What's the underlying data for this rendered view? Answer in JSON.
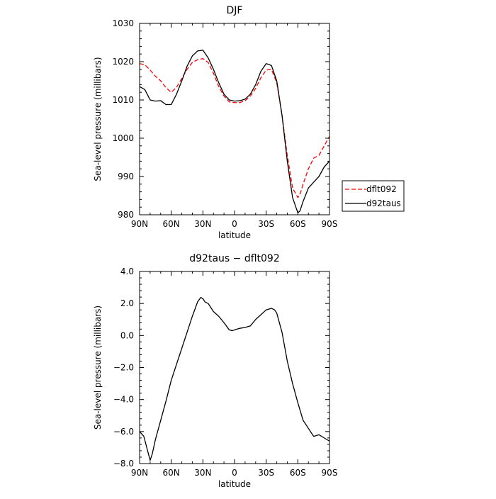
{
  "chart_data": [
    {
      "type": "line",
      "title": "DJF",
      "xlabel": "latitude",
      "ylabel": "Sea-level pressure (millibars)",
      "xlim": [
        -90,
        90
      ],
      "ylim": [
        980,
        1030
      ],
      "x_ticks": [
        {
          "value": -90,
          "label": "90N"
        },
        {
          "value": -60,
          "label": "60N"
        },
        {
          "value": -30,
          "label": "30N"
        },
        {
          "value": 0,
          "label": "0"
        },
        {
          "value": 30,
          "label": "30S"
        },
        {
          "value": 60,
          "label": "60S"
        },
        {
          "value": 90,
          "label": "90S"
        }
      ],
      "y_ticks": [
        {
          "value": 980,
          "label": "980"
        },
        {
          "value": 990,
          "label": "990"
        },
        {
          "value": 1000,
          "label": "1000"
        },
        {
          "value": 1010,
          "label": "1010"
        },
        {
          "value": 1020,
          "label": "1020"
        },
        {
          "value": 1030,
          "label": "1030"
        }
      ],
      "legend": {
        "placement": "right"
      },
      "series": [
        {
          "name": "dflt092",
          "color": "#ff0000",
          "dash": "dashed",
          "x": [
            -90,
            -85,
            -80,
            -75,
            -70,
            -65,
            -60,
            -55,
            -50,
            -45,
            -40,
            -35,
            -30,
            -25,
            -20,
            -15,
            -10,
            -5,
            0,
            5,
            10,
            15,
            20,
            25,
            30,
            35,
            40,
            45,
            50,
            55,
            60,
            62,
            65,
            70,
            75,
            80,
            85,
            90
          ],
          "values": [
            1019.5,
            1019.2,
            1017.8,
            1016.2,
            1015.0,
            1013.2,
            1012.0,
            1013.3,
            1015.6,
            1018.0,
            1019.8,
            1020.5,
            1020.8,
            1019.8,
            1017.0,
            1013.5,
            1011.0,
            1009.5,
            1009.3,
            1009.3,
            1009.8,
            1011.0,
            1013.0,
            1015.8,
            1017.8,
            1018.0,
            1014.5,
            1006.0,
            995.5,
            987.0,
            984.5,
            985.3,
            988.0,
            992.0,
            994.8,
            995.5,
            998.0,
            1000.5
          ]
        },
        {
          "name": "d92taus",
          "color": "#000000",
          "dash": "solid",
          "x": [
            -90,
            -85,
            -80,
            -75,
            -70,
            -65,
            -60,
            -55,
            -50,
            -45,
            -40,
            -35,
            -30,
            -25,
            -20,
            -15,
            -10,
            -5,
            0,
            5,
            10,
            15,
            20,
            25,
            30,
            35,
            40,
            45,
            50,
            55,
            60,
            62,
            65,
            70,
            75,
            80,
            85,
            90
          ],
          "values": [
            1013.5,
            1012.7,
            1010.0,
            1009.7,
            1009.8,
            1008.8,
            1008.8,
            1011.5,
            1015.0,
            1018.8,
            1021.5,
            1022.8,
            1023.0,
            1021.0,
            1018.0,
            1014.5,
            1011.5,
            1010.0,
            1009.7,
            1009.8,
            1010.2,
            1011.5,
            1014.0,
            1017.5,
            1019.5,
            1019.0,
            1015.0,
            1006.0,
            994.0,
            984.5,
            980.5,
            981.0,
            983.5,
            987.0,
            988.5,
            990.0,
            992.5,
            994.0
          ]
        }
      ]
    },
    {
      "type": "line",
      "title": "d92taus − dflt092",
      "xlabel": "latitude",
      "ylabel": "Sea-level pressure (millibars)",
      "xlim": [
        -90,
        90
      ],
      "ylim": [
        -8,
        4
      ],
      "x_ticks": [
        {
          "value": -90,
          "label": "90N"
        },
        {
          "value": -60,
          "label": "60N"
        },
        {
          "value": -30,
          "label": "30N"
        },
        {
          "value": 0,
          "label": "0"
        },
        {
          "value": 30,
          "label": "30S"
        },
        {
          "value": 60,
          "label": "60S"
        },
        {
          "value": 90,
          "label": "90S"
        }
      ],
      "y_ticks": [
        {
          "value": -8,
          "label": "−8.0"
        },
        {
          "value": -6,
          "label": "−6.0"
        },
        {
          "value": -4,
          "label": "−4.0"
        },
        {
          "value": -2,
          "label": "−2.0"
        },
        {
          "value": 0,
          "label": "0.0"
        },
        {
          "value": 2,
          "label": "2.0"
        },
        {
          "value": 4,
          "label": "4.0"
        }
      ],
      "series": [
        {
          "color": "#000000",
          "dash": "solid",
          "x": [
            -90,
            -86,
            -82,
            -80,
            -78,
            -75,
            -70,
            -65,
            -60,
            -55,
            -50,
            -45,
            -40,
            -35,
            -32,
            -30,
            -28,
            -25,
            -20,
            -15,
            -10,
            -5,
            -2,
            0,
            5,
            10,
            15,
            20,
            25,
            30,
            35,
            38,
            40,
            45,
            50,
            55,
            60,
            65,
            70,
            75,
            80,
            85,
            90
          ],
          "values": [
            -6.0,
            -6.3,
            -7.3,
            -7.8,
            -7.4,
            -6.5,
            -5.3,
            -4.1,
            -2.8,
            -1.8,
            -0.8,
            0.2,
            1.2,
            2.1,
            2.38,
            2.3,
            2.1,
            2.0,
            1.5,
            1.2,
            0.8,
            0.35,
            0.3,
            0.35,
            0.45,
            0.5,
            0.6,
            1.0,
            1.3,
            1.6,
            1.7,
            1.6,
            1.4,
            0.2,
            -1.6,
            -3.0,
            -4.2,
            -5.3,
            -5.8,
            -6.3,
            -6.2,
            -6.4,
            -6.6
          ]
        }
      ]
    }
  ]
}
